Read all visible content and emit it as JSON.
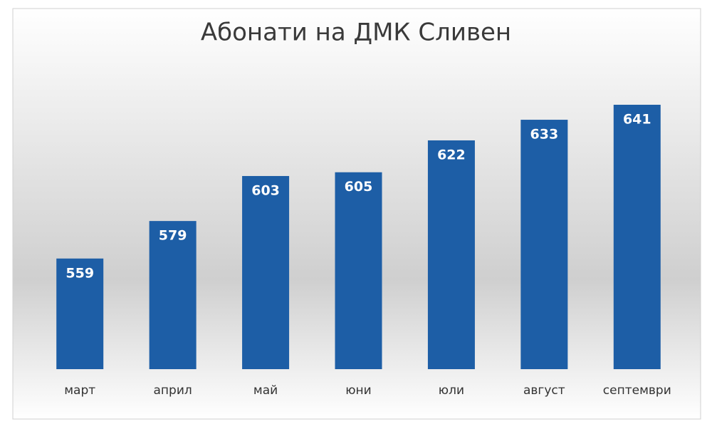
{
  "chart_data": {
    "type": "bar",
    "title": "Абонати на ДМК Сливен",
    "categories": [
      "март",
      "април",
      "май",
      "юни",
      "юли",
      "август",
      "септември"
    ],
    "values": [
      559,
      579,
      603,
      605,
      622,
      633,
      641
    ],
    "color": "#1d5ea6",
    "ylim": [
      500,
      660
    ]
  }
}
